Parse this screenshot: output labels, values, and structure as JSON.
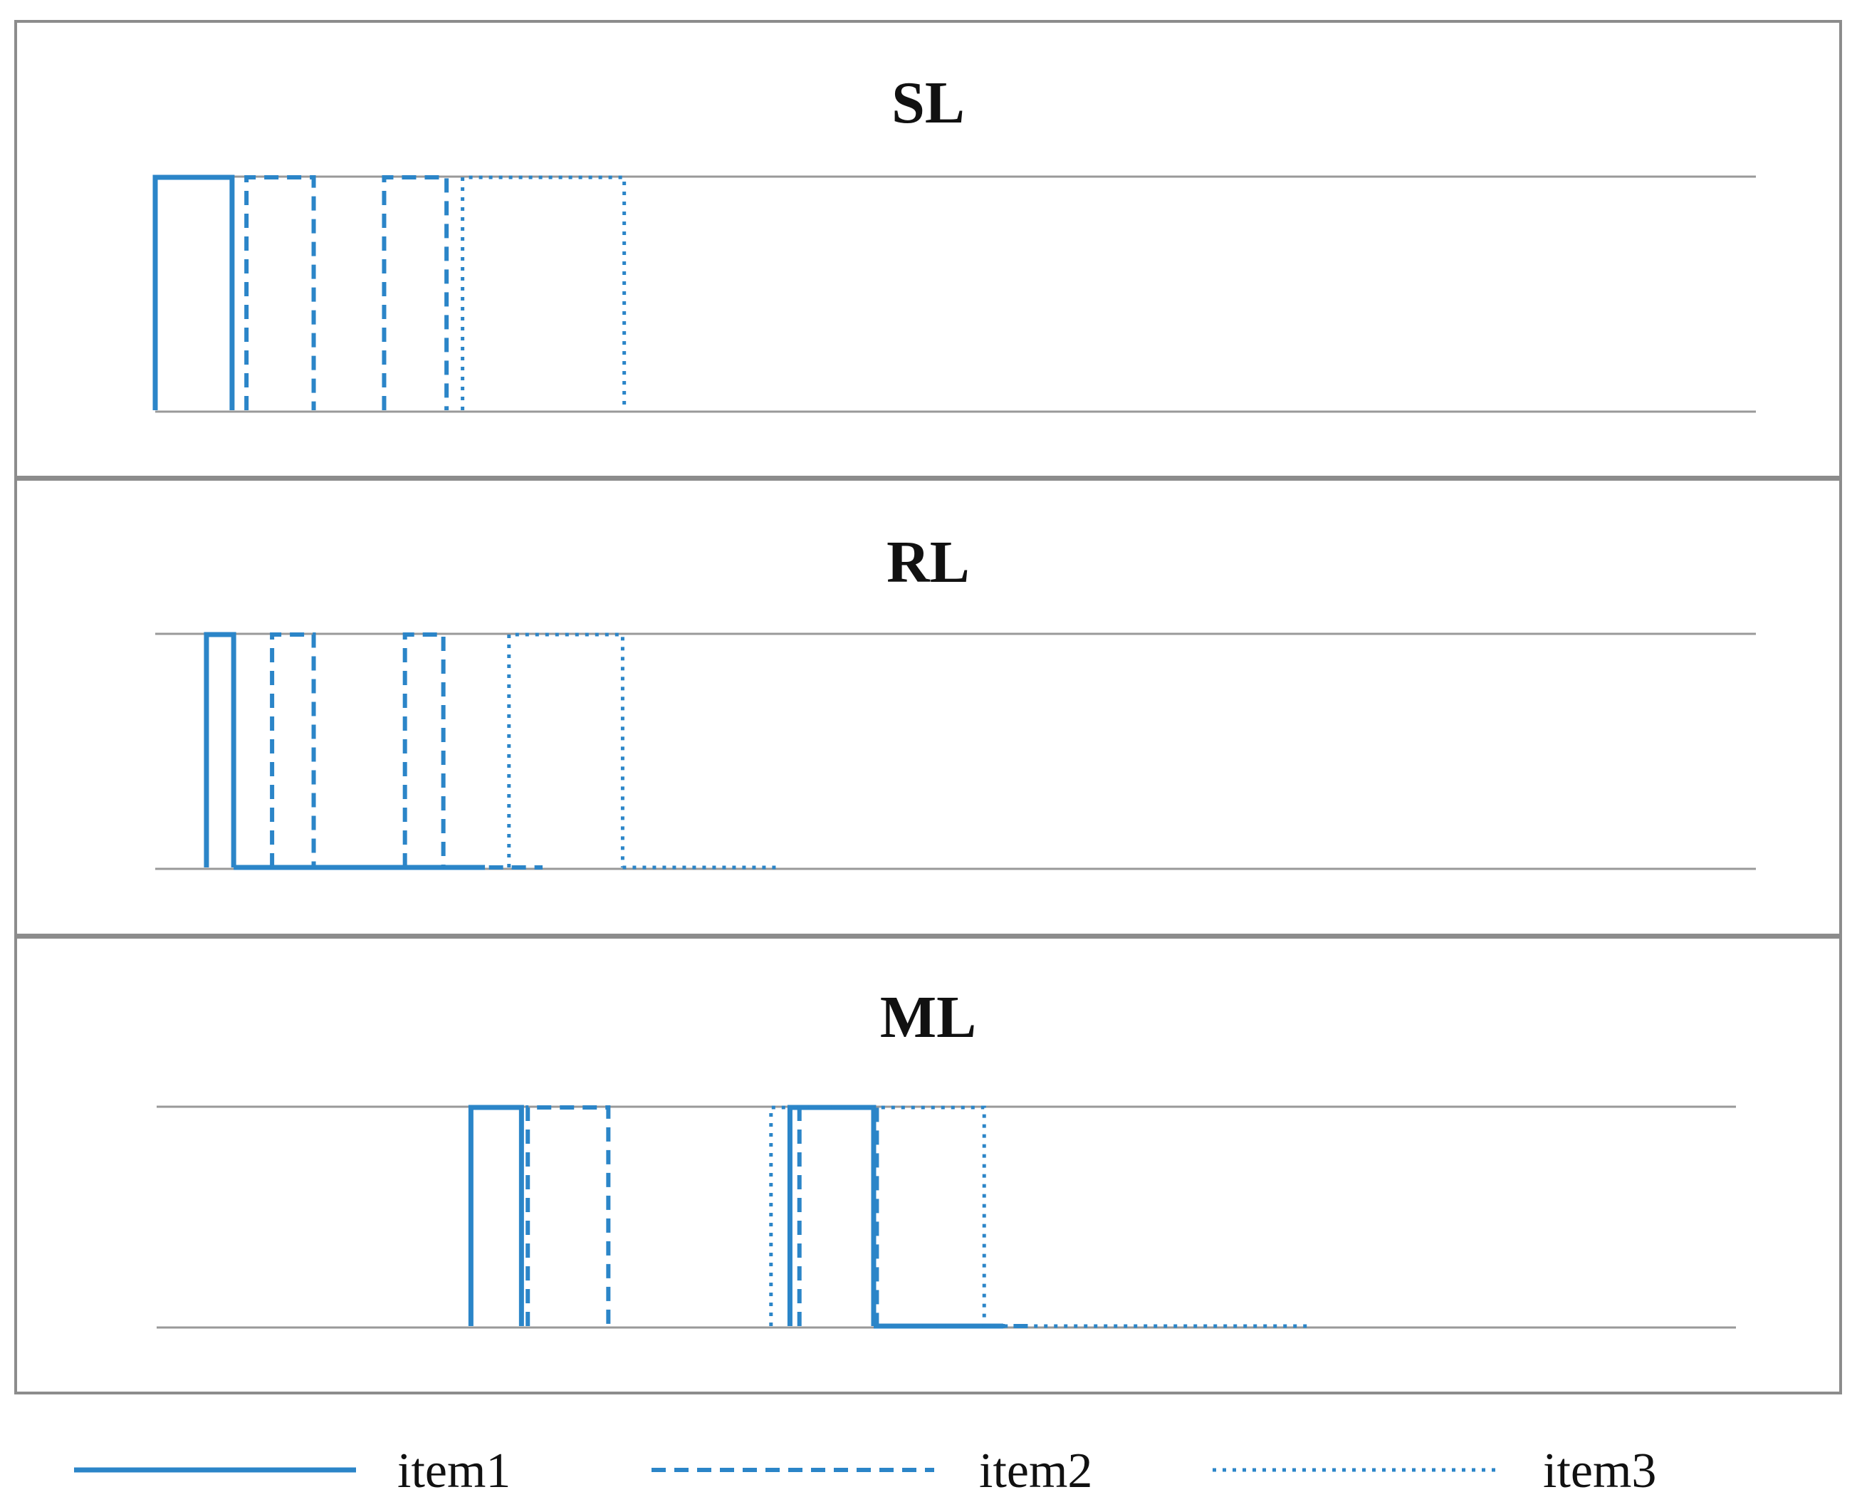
{
  "chart_data": {
    "type": "line",
    "series_color": "#2b85c8",
    "series": [
      {
        "name": "item1",
        "style": "solid"
      },
      {
        "name": "item2",
        "style": "dashed"
      },
      {
        "name": "item3",
        "style": "dotted"
      }
    ],
    "legend_placement": "bottom",
    "panels": [
      {
        "title": "SL",
        "xlim": [
          0,
          100
        ],
        "ylim": [
          0,
          1
        ],
        "tracks": [
          {
            "series": "item1",
            "pulses": [
              [
                0,
                4.8
              ]
            ]
          },
          {
            "series": "item2",
            "pulses": [
              [
                5.7,
                9.9
              ],
              [
                14.3,
                18.2
              ]
            ]
          },
          {
            "series": "item3",
            "pulses": [
              [
                19.2,
                29.3
              ]
            ]
          }
        ]
      },
      {
        "title": "RL",
        "xlim": [
          0,
          100
        ],
        "ylim": [
          0,
          1
        ],
        "tracks": [
          {
            "series": "item1",
            "pulses": [
              [
                3.2,
                4.9
              ]
            ],
            "baseline_end": 20.6
          },
          {
            "series": "item2",
            "pulses": [
              [
                7.3,
                9.9
              ],
              [
                15.6,
                18.0
              ]
            ],
            "baseline_end": 24.2
          },
          {
            "series": "item3",
            "pulses": [
              [
                22.1,
                29.2
              ]
            ],
            "baseline_end": 39.1
          }
        ]
      },
      {
        "title": "ML",
        "xlim": [
          0,
          100
        ],
        "ylim": [
          0,
          1
        ],
        "tracks": [
          {
            "series": "item1",
            "pulses": [
              [
                19.9,
                23.1
              ],
              [
                40.1,
                45.4
              ]
            ],
            "baseline_end": 53.6
          },
          {
            "series": "item2",
            "pulses": [
              [
                23.5,
                28.6
              ],
              [
                40.7,
                45.6
              ]
            ],
            "baseline_end": 55.6
          },
          {
            "series": "item3",
            "pulses": [
              [
                38.9,
                52.4
              ]
            ],
            "baseline_end": 72.9
          }
        ]
      }
    ]
  }
}
